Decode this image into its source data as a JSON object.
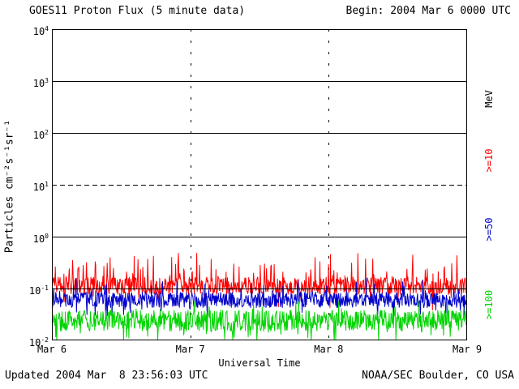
{
  "header": {
    "title": "GOES11 Proton Flux (5 minute data)",
    "begin_label": "Begin: 2004 Mar 6 0000 UTC"
  },
  "axes": {
    "ylabel": "Particles cm⁻²s⁻¹sr⁻¹",
    "xlabel": "Universal Time",
    "right_unit": "MeV"
  },
  "footer": {
    "updated": "Updated 2004 Mar  8 23:56:03 UTC",
    "credit": "NOAA/SEC Boulder, CO USA"
  },
  "chart_data": {
    "type": "line",
    "title": "GOES11 Proton Flux (5 minute data)",
    "xlabel": "Universal Time",
    "ylabel": "Particles cm-2 s-1 sr-1",
    "begin": "2004 Mar 6 0000 UTC",
    "updated": "2004 Mar 8 23:56:03 UTC",
    "source": "NOAA/SEC Boulder, CO USA",
    "log_y": true,
    "ylim_log10": [
      -2,
      4
    ],
    "y_tick_exponents": [
      4,
      3,
      2,
      1,
      0,
      -1,
      -2
    ],
    "x_ticks": [
      "Mar 6",
      "Mar 7",
      "Mar 8",
      "Mar 9"
    ],
    "x_range_days": 3,
    "points_per_day": 288,
    "grid": {
      "solid_decades": [
        3,
        2,
        0,
        -1
      ],
      "dashed_decades": [
        1
      ],
      "day_boundary_dashed_verticals": [
        "Mar 7",
        "Mar 8"
      ]
    },
    "legend_position": "right",
    "noise_seed": 20040306,
    "series": [
      {
        "name": ">=10",
        "unit": "MeV",
        "color": "#ff0000",
        "approx_mean_flux": 0.1,
        "approx_flux_range": [
          0.05,
          0.5
        ],
        "baseline_log10": -0.95,
        "jitter_log10": 0.17,
        "spike_prob": 0.12,
        "spike_amp_log10": 0.55,
        "dip_prob": 0.05,
        "dip_amp_log10": 0.35,
        "clip_max_log10": -0.32,
        "clip_min_log10": -1.99
      },
      {
        "name": ">=50",
        "unit": "MeV",
        "color": "#0000cc",
        "approx_mean_flux": 0.06,
        "approx_flux_range": [
          0.02,
          0.15
        ],
        "baseline_log10": -1.22,
        "jitter_log10": 0.15,
        "spike_prob": 0.08,
        "spike_amp_log10": 0.35,
        "dip_prob": 0.05,
        "dip_amp_log10": 0.3,
        "clip_max_log10": -0.8,
        "clip_min_log10": -1.99
      },
      {
        "name": ">=100",
        "unit": "MeV",
        "color": "#00d400",
        "approx_mean_flux": 0.025,
        "approx_flux_range": [
          0.01,
          0.06
        ],
        "baseline_log10": -1.62,
        "jitter_log10": 0.2,
        "spike_prob": 0.06,
        "spike_amp_log10": 0.3,
        "dip_prob": 0.08,
        "dip_amp_log10": 0.35,
        "clip_max_log10": -1.25,
        "clip_min_log10": -1.99
      }
    ]
  }
}
